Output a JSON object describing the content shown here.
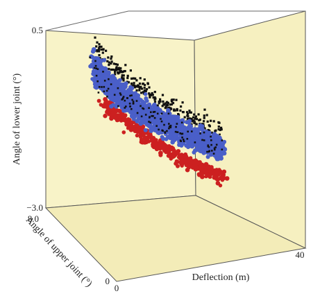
{
  "chart_data": {
    "type": "scatter",
    "subtype": "3d",
    "xlabel": "Deflection (m)",
    "ylabel": "Angle of upper joint (°)",
    "zlabel": "Angle of lower joint (°)",
    "xlim": [
      0,
      40
    ],
    "ylim": [
      0,
      8.0
    ],
    "zlim": [
      -3.0,
      0.5
    ],
    "ticks": {
      "x_min": "0",
      "x_max": "40",
      "y_min": "0",
      "y_max": "8.0",
      "z_min": "−3.0",
      "z_max": "0.5"
    },
    "grid": false,
    "legend": "none",
    "colors": {
      "wall": "#f8f3c8",
      "floor": "#f3ecb8",
      "edge": "#555555",
      "series_black": "#111111",
      "series_blue": "#4a5fc8",
      "series_red": "#cc2020"
    },
    "series": [
      {
        "color_key": "series_black"
      },
      {
        "color_key": "series_blue"
      },
      {
        "color_key": "series_red"
      }
    ]
  }
}
